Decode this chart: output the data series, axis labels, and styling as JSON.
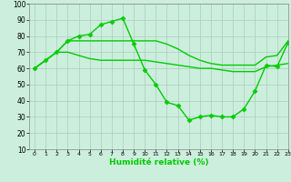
{
  "title": "",
  "xlabel": "Humidité relative (%)",
  "ylabel": "",
  "bg_color": "#cceedd",
  "grid_color": "#aaccbb",
  "line_color": "#00cc00",
  "xlim": [
    -0.5,
    23
  ],
  "ylim": [
    10,
    100
  ],
  "xticks": [
    0,
    1,
    2,
    3,
    4,
    5,
    6,
    7,
    8,
    9,
    10,
    11,
    12,
    13,
    14,
    15,
    16,
    17,
    18,
    19,
    20,
    21,
    22,
    23
  ],
  "yticks": [
    10,
    20,
    30,
    40,
    50,
    60,
    70,
    80,
    90,
    100
  ],
  "series": [
    {
      "x": [
        0,
        1,
        2,
        3,
        4,
        5,
        6,
        7,
        8,
        9,
        10,
        11,
        12,
        13,
        14,
        15,
        16,
        17,
        18,
        19,
        20,
        21,
        22,
        23
      ],
      "y": [
        60,
        65,
        70,
        77,
        80,
        81,
        87,
        89,
        91,
        75,
        59,
        50,
        39,
        37,
        28,
        30,
        31,
        30,
        30,
        35,
        46,
        62,
        61,
        76
      ],
      "marker": "D",
      "markersize": 2.5,
      "linewidth": 1.0
    },
    {
      "x": [
        0,
        1,
        2,
        3,
        4,
        5,
        6,
        7,
        8,
        9,
        10,
        11,
        12,
        13,
        14,
        15,
        16,
        17,
        18,
        19,
        20,
        21,
        22,
        23
      ],
      "y": [
        60,
        65,
        70,
        77,
        77,
        77,
        77,
        77,
        77,
        77,
        77,
        77,
        75,
        72,
        68,
        65,
        63,
        62,
        62,
        62,
        62,
        67,
        68,
        77
      ],
      "marker": null,
      "markersize": 0,
      "linewidth": 1.0
    },
    {
      "x": [
        0,
        1,
        2,
        3,
        4,
        5,
        6,
        7,
        8,
        9,
        10,
        11,
        12,
        13,
        14,
        15,
        16,
        17,
        18,
        19,
        20,
        21,
        22,
        23
      ],
      "y": [
        60,
        65,
        70,
        70,
        68,
        66,
        65,
        65,
        65,
        65,
        65,
        64,
        63,
        62,
        61,
        60,
        60,
        59,
        58,
        58,
        58,
        61,
        62,
        63
      ],
      "marker": null,
      "markersize": 0,
      "linewidth": 1.0
    }
  ]
}
